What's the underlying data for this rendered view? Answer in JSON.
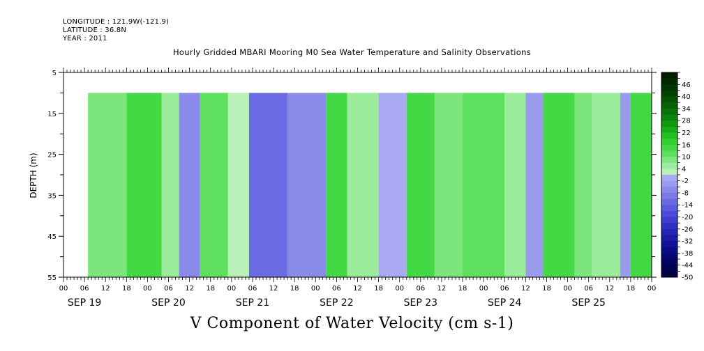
{
  "header": {
    "longitude": "LONGITUDE : 121.9W(-121.9)",
    "latitude": "LATITUDE : 36.8N",
    "year": "YEAR : 2011"
  },
  "chart_data": {
    "type": "heatmap",
    "title": "Hourly Gridded MBARI Mooring M0 Sea Water Temperature and Salinity Observations",
    "variable_title": "V Component of Water Velocity (cm s-1)",
    "ylabel": "DEPTH (m)",
    "ylim": [
      55,
      5
    ],
    "y_ticks": [
      5,
      15,
      25,
      35,
      45,
      55
    ],
    "data_depth_range": [
      10,
      55
    ],
    "x_range": [
      "2011-09-19T00:00",
      "2011-09-26T00:00"
    ],
    "data_start": "2011-09-19T07:00",
    "x_hour_ticks": [
      "00",
      "06",
      "12",
      "18",
      "00",
      "06",
      "12",
      "18",
      "00",
      "06",
      "12",
      "18",
      "00",
      "06",
      "12",
      "18",
      "00",
      "06",
      "12",
      "18",
      "00",
      "06",
      "12",
      "18",
      "00",
      "06",
      "12",
      "18",
      "00"
    ],
    "x_day_labels": [
      "SEP 19",
      "SEP 20",
      "SEP 21",
      "SEP 22",
      "SEP 23",
      "SEP 24",
      "SEP 25"
    ],
    "colorbar": {
      "labels": [
        "46",
        "40",
        "34",
        "28",
        "22",
        "16",
        "10",
        "4",
        "-2",
        "-8",
        "-14",
        "-20",
        "-26",
        "-32",
        "-38",
        "-44",
        "-50"
      ],
      "level_min": -50,
      "level_max": 52,
      "level_step": 3,
      "colors_positive": [
        "#b8f0b8",
        "#9aeb9a",
        "#7ce67c",
        "#5ee05e",
        "#44d944",
        "#2ecf2e",
        "#1fc01f",
        "#15ac15",
        "#0f990f",
        "#0b860b",
        "#087308",
        "#066206",
        "#045204",
        "#034403",
        "#023602",
        "#012a01",
        "#011e01"
      ],
      "colors_negative": [
        "#a9a9f2",
        "#9b9bee",
        "#8a8aea",
        "#7a7ae6",
        "#6a6ae2",
        "#5a5ade",
        "#4b4bd8",
        "#3d3dd0",
        "#3030c4",
        "#2424b6",
        "#1a1aa6",
        "#121296",
        "#0b0b85",
        "#060674",
        "#030363",
        "#010152",
        "#000042"
      ]
    },
    "field_summary": [
      {
        "start": "2011-09-19T07:00",
        "end": "2011-09-19T18:00",
        "v_cm_s": 8
      },
      {
        "start": "2011-09-19T18:00",
        "end": "2011-09-20T04:00",
        "v_cm_s": 14
      },
      {
        "start": "2011-09-20T04:00",
        "end": "2011-09-20T09:00",
        "v_cm_s": 4
      },
      {
        "start": "2011-09-20T09:00",
        "end": "2011-09-20T15:00",
        "v_cm_s": -6
      },
      {
        "start": "2011-09-20T15:00",
        "end": "2011-09-20T23:00",
        "v_cm_s": 10
      },
      {
        "start": "2011-09-20T23:00",
        "end": "2011-09-21T05:00",
        "v_cm_s": 2
      },
      {
        "start": "2011-09-21T05:00",
        "end": "2011-09-21T16:00",
        "v_cm_s": -12
      },
      {
        "start": "2011-09-21T16:00",
        "end": "2011-09-22T03:00",
        "v_cm_s": -8
      },
      {
        "start": "2011-09-22T03:00",
        "end": "2011-09-22T09:00",
        "v_cm_s": 12
      },
      {
        "start": "2011-09-22T09:00",
        "end": "2011-09-22T18:00",
        "v_cm_s": 4
      },
      {
        "start": "2011-09-22T18:00",
        "end": "2011-09-23T02:00",
        "v_cm_s": -2
      },
      {
        "start": "2011-09-23T02:00",
        "end": "2011-09-23T10:00",
        "v_cm_s": 14
      },
      {
        "start": "2011-09-23T10:00",
        "end": "2011-09-23T18:00",
        "v_cm_s": 6
      },
      {
        "start": "2011-09-23T18:00",
        "end": "2011-09-24T06:00",
        "v_cm_s": 10
      },
      {
        "start": "2011-09-24T06:00",
        "end": "2011-09-24T12:00",
        "v_cm_s": 4
      },
      {
        "start": "2011-09-24T12:00",
        "end": "2011-09-24T17:00",
        "v_cm_s": -4
      },
      {
        "start": "2011-09-24T17:00",
        "end": "2011-09-25T02:00",
        "v_cm_s": 12
      },
      {
        "start": "2011-09-25T02:00",
        "end": "2011-09-25T07:00",
        "v_cm_s": 6
      },
      {
        "start": "2011-09-25T07:00",
        "end": "2011-09-25T15:00",
        "v_cm_s": 4
      },
      {
        "start": "2011-09-25T15:00",
        "end": "2011-09-25T18:00",
        "v_cm_s": -4
      },
      {
        "start": "2011-09-25T18:00",
        "end": "2011-09-26T00:00",
        "v_cm_s": 14
      }
    ]
  }
}
